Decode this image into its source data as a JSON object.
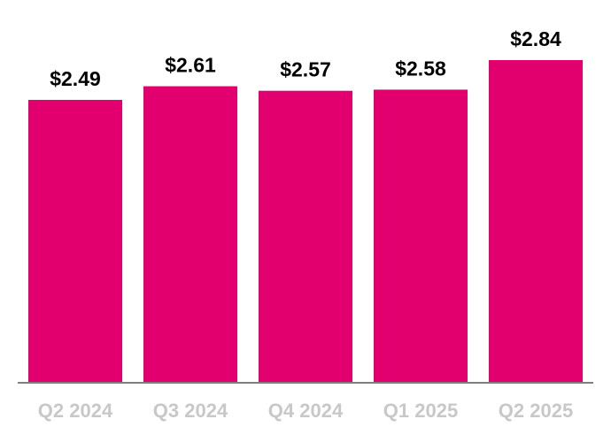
{
  "chart_data": {
    "type": "bar",
    "categories": [
      "Q2 2024",
      "Q3 2024",
      "Q4 2024",
      "Q1 2025",
      "Q2 2025"
    ],
    "values": [
      2.49,
      2.61,
      2.57,
      2.58,
      2.84
    ],
    "data_labels": [
      "$2.49",
      "$2.61",
      "$2.57",
      "$2.58",
      "$2.84"
    ],
    "ylim": [
      0,
      2.84
    ],
    "grid": false,
    "legend": "none",
    "title": "",
    "xlabel": "",
    "ylabel": ""
  },
  "colors": {
    "bar": "#e2006f",
    "axis": "#7f7f7f",
    "tick_label": "#c8c8c8",
    "value_label": "#000000"
  }
}
